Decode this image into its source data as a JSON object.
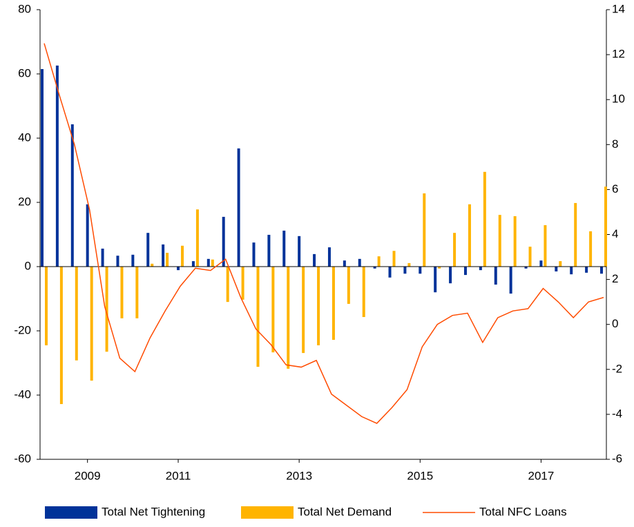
{
  "chart_data": {
    "type": "bar-line",
    "categories": [
      null,
      null,
      null,
      "2009",
      null,
      null,
      null,
      null,
      null,
      "2011",
      null,
      null,
      null,
      null,
      null,
      null,
      null,
      "2013",
      null,
      null,
      null,
      null,
      null,
      null,
      null,
      "2015",
      null,
      null,
      null,
      null,
      null,
      null,
      null,
      "2017",
      null,
      null,
      null,
      null
    ],
    "series": [
      {
        "name": "Total Net Tightening",
        "type": "bar",
        "color": "#003299",
        "values": [
          61.5,
          62.6,
          44.3,
          19.4,
          5.6,
          3.4,
          3.7,
          10.5,
          6.9,
          -1.1,
          1.7,
          2.4,
          15.5,
          36.8,
          7.5,
          9.9,
          11.2,
          9.5,
          3.9,
          6.0,
          1.9,
          2.4,
          -0.6,
          -3.4,
          -2.2,
          -2.2,
          -8.0,
          -5.2,
          -2.6,
          -1.1,
          -5.6,
          -8.4,
          -0.6,
          1.9,
          -1.5,
          -2.4,
          -1.9,
          -2.2
        ]
      },
      {
        "name": "Total Net Demand",
        "type": "bar",
        "color": "#FFB400",
        "values": [
          -24.5,
          -42.8,
          -29.2,
          -35.5,
          -26.5,
          -16.1,
          -16.1,
          0.9,
          4.3,
          6.5,
          17.8,
          2.2,
          -11.0,
          -10.3,
          -31.2,
          -26.7,
          -31.8,
          -26.9,
          -24.5,
          -22.8,
          -11.6,
          -15.7,
          3.2,
          4.9,
          1.1,
          22.8,
          -0.6,
          10.5,
          19.4,
          29.5,
          16.1,
          15.7,
          6.2,
          12.9,
          1.7,
          19.8,
          11.0,
          24.9
        ]
      },
      {
        "name": "Total NFC Loans",
        "type": "line",
        "axis": "y2",
        "color": "#FF4B00",
        "values": [
          12.5,
          10.2,
          8.0,
          5.1,
          0.8,
          -1.5,
          -2.1,
          -0.6,
          0.6,
          1.7,
          2.5,
          2.4,
          2.9,
          1.2,
          -0.2,
          -0.9,
          -1.8,
          -1.9,
          -1.6,
          -3.1,
          -3.6,
          -4.1,
          -4.4,
          -3.7,
          -2.9,
          -1.0,
          0.0,
          0.4,
          0.5,
          -0.8,
          0.3,
          0.6,
          0.7,
          1.6,
          1.0,
          0.3,
          1.0,
          1.2
        ]
      }
    ],
    "ylim": [
      -60,
      80
    ],
    "yticks": [
      -60,
      -40,
      -20,
      0,
      20,
      40,
      60,
      80
    ],
    "y2lim": [
      -6,
      14
    ],
    "y2ticks": [
      -6,
      -4,
      -2,
      0,
      2,
      4,
      6,
      8,
      10,
      12,
      14
    ],
    "legend": "bottom"
  }
}
